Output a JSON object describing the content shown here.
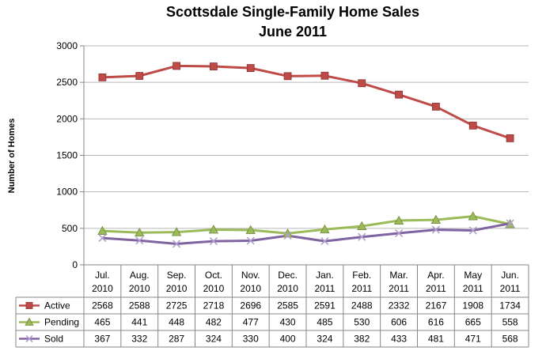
{
  "chart_data": {
    "type": "line",
    "title": "Scottsdale Single-Family Home Sales",
    "subtitle": "June 2011",
    "xlabel": "",
    "ylabel": "Number of Homes",
    "ylim": [
      0,
      3000
    ],
    "yticks": [
      0,
      500,
      1000,
      1500,
      2000,
      2500,
      3000
    ],
    "grid": true,
    "legend": "data-table",
    "categories": [
      [
        "Jul.",
        "2010"
      ],
      [
        "Aug.",
        "2010"
      ],
      [
        "Sep.",
        "2010"
      ],
      [
        "Oct.",
        "2010"
      ],
      [
        "Nov.",
        "2010"
      ],
      [
        "Dec.",
        "2010"
      ],
      [
        "Jan.",
        "2011"
      ],
      [
        "Feb.",
        "2011"
      ],
      [
        "Mar.",
        "2011"
      ],
      [
        "Apr.",
        "2011"
      ],
      [
        "May",
        "2011"
      ],
      [
        "Jun.",
        "2011"
      ]
    ],
    "series": [
      {
        "name": "Active",
        "color": "#be4b48",
        "marker": "square",
        "values": [
          2568,
          2588,
          2725,
          2718,
          2696,
          2585,
          2591,
          2488,
          2332,
          2167,
          1908,
          1734
        ]
      },
      {
        "name": "Pending",
        "color": "#9bbb59",
        "marker": "triangle",
        "values": [
          465,
          441,
          448,
          482,
          477,
          430,
          485,
          530,
          606,
          616,
          665,
          558
        ]
      },
      {
        "name": "Sold",
        "color": "#8064a2",
        "marker": "x",
        "values": [
          367,
          332,
          287,
          324,
          330,
          400,
          324,
          382,
          433,
          481,
          471,
          568
        ]
      }
    ]
  }
}
